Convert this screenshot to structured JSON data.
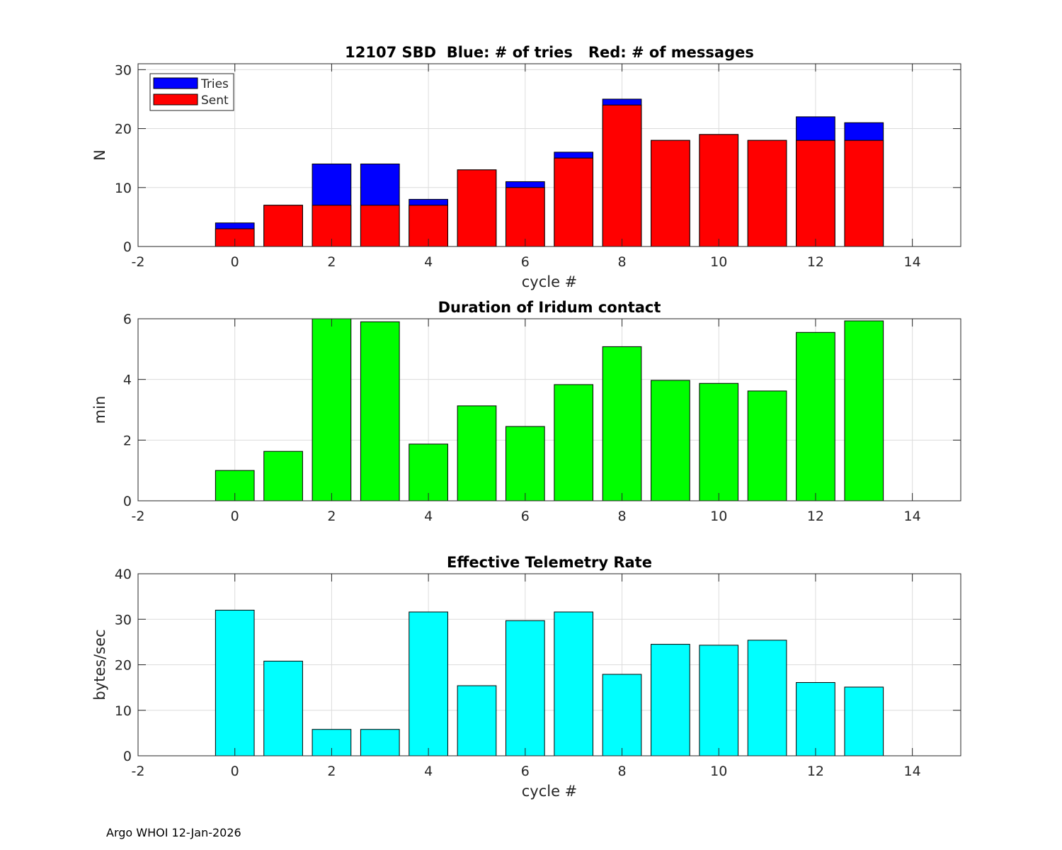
{
  "footer": "Argo WHOI 12-Jan-2026",
  "colors": {
    "tries": "#0000ff",
    "sent": "#ff0000",
    "duration": "#00ff00",
    "rate": "#00ffff",
    "grid": "#dcdcdc",
    "bar_edge": "#000000"
  },
  "chart_data": [
    {
      "type": "bar",
      "title": "12107 SBD  Blue: # of tries   Red: # of messages",
      "xlabel": "cycle #",
      "ylabel": "N",
      "xlim": [
        -2,
        15
      ],
      "ylim": [
        0,
        31
      ],
      "xticks": [
        -2,
        0,
        2,
        4,
        6,
        8,
        10,
        12,
        14
      ],
      "yticks": [
        0,
        10,
        20,
        30
      ],
      "grid": true,
      "legend": {
        "placement": "top-left"
      },
      "x": [
        0,
        1,
        2,
        3,
        4,
        5,
        6,
        7,
        8,
        9,
        10,
        11,
        12,
        13
      ],
      "series": [
        {
          "name": "Tries",
          "color": "#0000ff",
          "values": [
            4,
            7,
            14,
            14,
            8,
            13,
            11,
            16,
            25,
            18,
            19,
            18,
            22,
            21
          ]
        },
        {
          "name": "Sent",
          "color": "#ff0000",
          "values": [
            3,
            7,
            7,
            7,
            7,
            13,
            10,
            15,
            24,
            18,
            19,
            18,
            18,
            18
          ]
        }
      ]
    },
    {
      "type": "bar",
      "title": "Duration of Iridum contact",
      "xlabel": "",
      "ylabel": "min",
      "xlim": [
        -2,
        15
      ],
      "ylim": [
        0,
        6
      ],
      "xticks": [
        -2,
        0,
        2,
        4,
        6,
        8,
        10,
        12,
        14
      ],
      "yticks": [
        0,
        2,
        4,
        6
      ],
      "grid": true,
      "x": [
        0,
        1,
        2,
        3,
        4,
        5,
        6,
        7,
        8,
        9,
        10,
        11,
        12,
        13
      ],
      "series": [
        {
          "color": "#00ff00",
          "values": [
            1.0,
            1.63,
            6.0,
            5.9,
            1.87,
            3.13,
            2.45,
            3.83,
            5.08,
            3.97,
            3.87,
            3.62,
            5.55,
            5.93
          ]
        }
      ]
    },
    {
      "type": "bar",
      "title": "Effective Telemetry Rate",
      "xlabel": "cycle #",
      "ylabel": "bytes/sec",
      "xlim": [
        -2,
        15
      ],
      "ylim": [
        0,
        40
      ],
      "xticks": [
        -2,
        0,
        2,
        4,
        6,
        8,
        10,
        12,
        14
      ],
      "yticks": [
        0,
        10,
        20,
        30,
        40
      ],
      "grid": true,
      "x": [
        0,
        1,
        2,
        3,
        4,
        5,
        6,
        7,
        8,
        9,
        10,
        11,
        12,
        13
      ],
      "series": [
        {
          "color": "#00ffff",
          "values": [
            32.0,
            20.8,
            5.8,
            5.8,
            31.6,
            15.4,
            29.7,
            31.6,
            17.9,
            24.5,
            24.3,
            25.4,
            16.1,
            15.1
          ]
        }
      ]
    }
  ]
}
